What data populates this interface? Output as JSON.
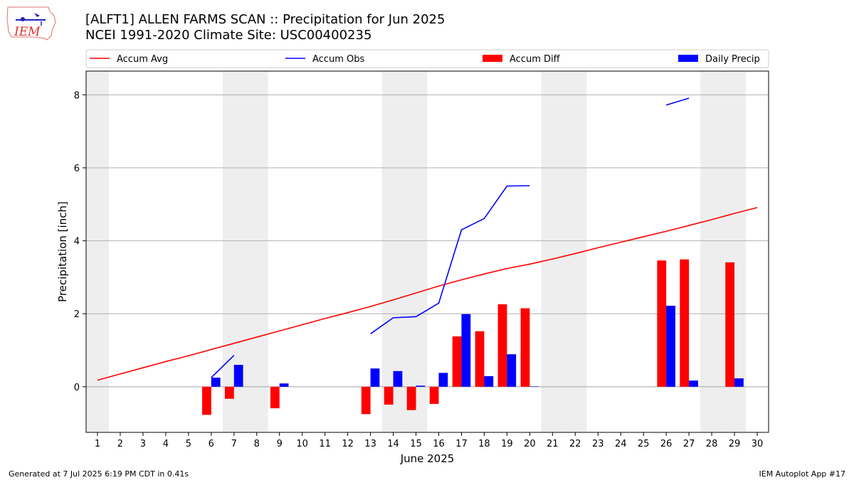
{
  "header": {
    "title_line1": "[ALFT1] ALLEN FARMS SCAN :: Precipitation for Jun 2025",
    "title_line2": "NCEI 1991-2020 Climate Site: USC00400235",
    "logo_text": "IEM"
  },
  "footer": {
    "left": "Generated at 7 Jul 2025 6:19 PM CDT in 0.41s",
    "right": "IEM Autoplot App #17"
  },
  "chart_data": {
    "type": "bar",
    "xlabel": "June 2025",
    "ylabel": "Precipitation [inch]",
    "xlim": [
      0.5,
      30.5
    ],
    "ylim": [
      -1.25,
      8.65
    ],
    "yticks": [
      0,
      2,
      4,
      6,
      8
    ],
    "xticks": [
      1,
      2,
      3,
      4,
      5,
      6,
      7,
      8,
      9,
      10,
      11,
      12,
      13,
      14,
      15,
      16,
      17,
      18,
      19,
      20,
      21,
      22,
      23,
      24,
      25,
      26,
      27,
      28,
      29,
      30
    ],
    "grid": "horizontal",
    "legend_position": "top",
    "weekend_bands": [
      [
        0.5,
        1.5
      ],
      [
        6.5,
        8.5
      ],
      [
        13.5,
        15.5
      ],
      [
        20.5,
        22.5
      ],
      [
        27.5,
        29.5
      ]
    ],
    "colors": {
      "accum_avg": "#ff0000",
      "accum_obs": "#0000ff",
      "accum_diff": "#ff0000",
      "daily_precip": "#0000ff",
      "band": "#eeeeee",
      "grid": "#b0b0b0"
    },
    "legend": [
      "Accum Avg",
      "Accum Obs",
      "Accum Diff",
      "Daily Precip"
    ],
    "series": [
      {
        "name": "Accum Avg",
        "kind": "line",
        "points": [
          [
            1,
            0.18
          ],
          [
            2,
            0.35
          ],
          [
            3,
            0.52
          ],
          [
            4,
            0.69
          ],
          [
            5,
            0.85
          ],
          [
            6,
            1.02
          ],
          [
            7,
            1.19
          ],
          [
            8,
            1.36
          ],
          [
            9,
            1.53
          ],
          [
            10,
            1.7
          ],
          [
            11,
            1.87
          ],
          [
            12,
            2.03
          ],
          [
            13,
            2.2
          ],
          [
            14,
            2.38
          ],
          [
            15,
            2.57
          ],
          [
            16,
            2.76
          ],
          [
            17,
            2.93
          ],
          [
            18,
            3.09
          ],
          [
            19,
            3.24
          ],
          [
            20,
            3.36
          ],
          [
            21,
            3.5
          ],
          [
            22,
            3.65
          ],
          [
            23,
            3.81
          ],
          [
            24,
            3.96
          ],
          [
            25,
            4.11
          ],
          [
            26,
            4.26
          ],
          [
            27,
            4.42
          ],
          [
            28,
            4.58
          ],
          [
            29,
            4.75
          ],
          [
            30,
            4.91
          ]
        ]
      },
      {
        "name": "Accum Obs",
        "kind": "line",
        "segments": [
          [
            [
              6,
              0.25
            ],
            [
              7,
              0.86
            ]
          ],
          [
            [
              13,
              1.45
            ],
            [
              14,
              1.89
            ],
            [
              15,
              1.92
            ],
            [
              16,
              2.29
            ],
            [
              17,
              4.3
            ],
            [
              18,
              4.61
            ],
            [
              19,
              5.5
            ],
            [
              20,
              5.51
            ]
          ],
          [
            [
              26,
              7.72
            ],
            [
              27,
              7.91
            ]
          ]
        ]
      },
      {
        "name": "Accum Diff",
        "kind": "bar",
        "points": [
          [
            6,
            -0.77
          ],
          [
            7,
            -0.33
          ],
          [
            9,
            -0.59
          ],
          [
            13,
            -0.75
          ],
          [
            14,
            -0.49
          ],
          [
            15,
            -0.64
          ],
          [
            16,
            -0.47
          ],
          [
            17,
            1.38
          ],
          [
            18,
            1.52
          ],
          [
            19,
            2.26
          ],
          [
            20,
            2.15
          ],
          [
            26,
            3.46
          ],
          [
            27,
            3.49
          ],
          [
            29,
            3.41
          ]
        ]
      },
      {
        "name": "Daily Precip",
        "kind": "bar",
        "points": [
          [
            6,
            0.25
          ],
          [
            7,
            0.6
          ],
          [
            9,
            0.09
          ],
          [
            13,
            0.5
          ],
          [
            14,
            0.43
          ],
          [
            15,
            0.03
          ],
          [
            16,
            0.38
          ],
          [
            17,
            1.99
          ],
          [
            18,
            0.29
          ],
          [
            19,
            0.89
          ],
          [
            20,
            0.01
          ],
          [
            26,
            2.22
          ],
          [
            27,
            0.17
          ],
          [
            29,
            0.23
          ]
        ]
      }
    ]
  }
}
